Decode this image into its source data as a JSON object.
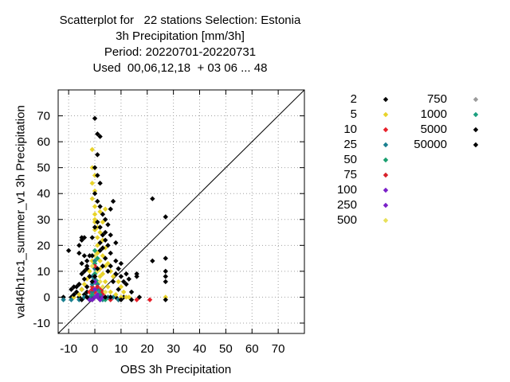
{
  "chart_data": {
    "type": "scatter",
    "title_lines": [
      "Scatterplot for   22 stations Selection: Estonia",
      "3h Precipitation [mm/3h]",
      "Period: 20220701-20220731",
      "Used  00,06,12,18  + 03 06 ... 48"
    ],
    "xlabel": "OBS 3h Precipitation",
    "ylabel": "val46h1rc1_summer_v1 3h Precipitation",
    "xlim": [
      -14,
      80
    ],
    "ylim": [
      -14,
      80
    ],
    "xticks": [
      -10,
      0,
      10,
      20,
      30,
      40,
      50,
      60,
      70
    ],
    "yticks": [
      -10,
      0,
      10,
      20,
      30,
      40,
      50,
      60,
      70
    ],
    "grid": true,
    "diagonal": true,
    "legend_placement": "right",
    "series": [
      {
        "name": "2",
        "color": "#000000",
        "points": [
          [
            -12,
            0
          ],
          [
            -9,
            0
          ],
          [
            -6,
            0
          ],
          [
            -3,
            0
          ],
          [
            -1,
            0
          ],
          [
            0,
            0
          ],
          [
            2,
            0
          ],
          [
            5,
            0
          ],
          [
            8,
            0
          ],
          [
            11,
            0
          ],
          [
            -10,
            18
          ],
          [
            -8,
            4
          ],
          [
            -7,
            4
          ],
          [
            -6,
            5
          ],
          [
            -5,
            3
          ],
          [
            -4,
            10
          ],
          [
            -3,
            12
          ],
          [
            -2,
            8
          ],
          [
            -5,
            13
          ],
          [
            -6,
            17
          ],
          [
            -5,
            23
          ],
          [
            -4,
            23
          ],
          [
            -3,
            11
          ],
          [
            -2,
            16
          ],
          [
            -1,
            0
          ],
          [
            2,
            -1
          ],
          [
            -1,
            -1
          ],
          [
            -2,
            -1
          ],
          [
            -4,
            1
          ],
          [
            -3,
            2
          ]
        ]
      },
      {
        "name": "5",
        "color": "#e8d32a",
        "points": [
          [
            -1,
            57
          ],
          [
            -1,
            50
          ],
          [
            0,
            47
          ],
          [
            -1,
            44
          ],
          [
            0,
            41
          ],
          [
            -1,
            38
          ],
          [
            0,
            35
          ],
          [
            0,
            32
          ],
          [
            0,
            29
          ],
          [
            0,
            26
          ],
          [
            1,
            23
          ],
          [
            1,
            20
          ],
          [
            1,
            17
          ],
          [
            2,
            14
          ],
          [
            2,
            11
          ],
          [
            3,
            9
          ],
          [
            4,
            6
          ],
          [
            5,
            4
          ],
          [
            6,
            2
          ],
          [
            8,
            1
          ],
          [
            10,
            0
          ],
          [
            12,
            0
          ],
          [
            0,
            30
          ],
          [
            1,
            27
          ],
          [
            2,
            25
          ],
          [
            3,
            22
          ],
          [
            4,
            19
          ],
          [
            3,
            16
          ],
          [
            5,
            13
          ],
          [
            6,
            10
          ],
          [
            7,
            8
          ],
          [
            9,
            6
          ],
          [
            10,
            4
          ],
          [
            11,
            2
          ],
          [
            13,
            0
          ],
          [
            -1,
            14
          ],
          [
            -2,
            10
          ],
          [
            -3,
            7
          ],
          [
            -4,
            5
          ],
          [
            -5,
            3
          ],
          [
            -6,
            1
          ],
          [
            -8,
            0
          ],
          [
            2,
            33
          ],
          [
            3,
            29
          ],
          [
            4,
            34
          ],
          [
            27,
            0
          ],
          [
            2,
            8
          ],
          [
            4,
            12
          ]
        ]
      },
      {
        "name": "10",
        "color": "#e8202a",
        "points": [
          [
            16,
            -1
          ],
          [
            21,
            -1
          ],
          [
            9,
            -1
          ],
          [
            6,
            0
          ],
          [
            3,
            1
          ],
          [
            2,
            3
          ],
          [
            1,
            5
          ],
          [
            0,
            2
          ],
          [
            -1,
            4
          ],
          [
            -2,
            2
          ]
        ]
      },
      {
        "name": "25",
        "color": "#1a7f8f",
        "points": [
          [
            0,
            14
          ],
          [
            0,
            11
          ],
          [
            0,
            9
          ],
          [
            0,
            7
          ],
          [
            1,
            5
          ],
          [
            1,
            3
          ],
          [
            2,
            1
          ],
          [
            -1,
            8
          ],
          [
            -1,
            5
          ],
          [
            -1,
            2
          ],
          [
            -2,
            0
          ],
          [
            3,
            -1
          ],
          [
            5,
            0
          ],
          [
            7,
            0
          ],
          [
            9,
            -1
          ],
          [
            -4,
            0
          ],
          [
            -6,
            -1
          ],
          [
            -9,
            -1
          ],
          [
            -12,
            -1
          ]
        ]
      },
      {
        "name": "50",
        "color": "#1a9f6f",
        "points": [
          [
            0,
            18
          ],
          [
            1,
            15
          ],
          [
            -1,
            16
          ],
          [
            0,
            13
          ],
          [
            0,
            9
          ],
          [
            1,
            6
          ],
          [
            2,
            2
          ],
          [
            -1,
            1
          ],
          [
            4,
            -1
          ]
        ]
      },
      {
        "name": "75",
        "color": "#d8202a",
        "points": [
          [
            0,
            12
          ],
          [
            0,
            8
          ],
          [
            1,
            4
          ],
          [
            3,
            2
          ],
          [
            -1,
            3
          ],
          [
            6,
            -1
          ]
        ]
      },
      {
        "name": "100",
        "color": "#7a20c8",
        "points": [
          [
            0,
            6
          ],
          [
            0,
            3
          ],
          [
            1,
            1
          ],
          [
            -1,
            -1
          ],
          [
            2,
            -1
          ],
          [
            3,
            0
          ]
        ]
      },
      {
        "name": "250",
        "color": "#7a20c8",
        "points": [
          [
            -2,
            -1
          ],
          [
            1,
            0
          ],
          [
            0,
            0
          ]
        ]
      },
      {
        "name": "500",
        "color": "#e8e05a",
        "points": [
          [
            0,
            16
          ],
          [
            1,
            10
          ],
          [
            2,
            6
          ],
          [
            -1,
            12
          ],
          [
            3,
            4
          ],
          [
            4,
            2
          ]
        ]
      },
      {
        "name": "750",
        "color": "#9a9a9a",
        "points": []
      },
      {
        "name": "1000",
        "color": "#1a9f7f",
        "points": []
      },
      {
        "name": "5000",
        "color": "#000000",
        "points": []
      },
      {
        "name": "50000",
        "color": "#000000",
        "points": [
          [
            0,
            69
          ],
          [
            1,
            63
          ],
          [
            2,
            62
          ],
          [
            1,
            55
          ],
          [
            0,
            50
          ],
          [
            1,
            47
          ],
          [
            2,
            44
          ],
          [
            0,
            40
          ],
          [
            1,
            37
          ],
          [
            2,
            35
          ],
          [
            3,
            32
          ],
          [
            4,
            30
          ],
          [
            5,
            28
          ],
          [
            6,
            34
          ],
          [
            7,
            37
          ],
          [
            1,
            29
          ],
          [
            2,
            27
          ],
          [
            3,
            24
          ],
          [
            2,
            21
          ],
          [
            4,
            22
          ],
          [
            5,
            20
          ],
          [
            6,
            17
          ],
          [
            4,
            15
          ],
          [
            6,
            12
          ],
          [
            8,
            14
          ],
          [
            9,
            11
          ],
          [
            10,
            8
          ],
          [
            11,
            6
          ],
          [
            12,
            5
          ],
          [
            9,
            3
          ],
          [
            7,
            6
          ],
          [
            8,
            9
          ],
          [
            5,
            10
          ],
          [
            3,
            12
          ],
          [
            1,
            11
          ],
          [
            0,
            8
          ],
          [
            -1,
            6
          ],
          [
            -2,
            8
          ],
          [
            -3,
            4
          ],
          [
            -4,
            7
          ],
          [
            -5,
            9
          ],
          [
            -6,
            5
          ],
          [
            -7,
            2
          ],
          [
            -8,
            1
          ],
          [
            -9,
            3
          ],
          [
            -5,
            -1
          ],
          [
            -3,
            0
          ],
          [
            4,
            0
          ],
          [
            6,
            0
          ],
          [
            10,
            -1
          ],
          [
            14,
            -1
          ],
          [
            16,
            9
          ],
          [
            16,
            8
          ],
          [
            17,
            0
          ],
          [
            22,
            38
          ],
          [
            22,
            14
          ],
          [
            27,
            31
          ],
          [
            27,
            15
          ],
          [
            27,
            10
          ],
          [
            27,
            8
          ],
          [
            27,
            6
          ],
          [
            27,
            -1
          ],
          [
            2,
            18
          ],
          [
            3,
            19
          ],
          [
            4,
            25
          ],
          [
            6,
            24
          ],
          [
            8,
            21
          ],
          [
            10,
            13
          ],
          [
            12,
            9
          ],
          [
            13,
            7
          ],
          [
            14,
            2
          ],
          [
            -1,
            23
          ],
          [
            -1,
            16
          ],
          [
            0,
            27
          ],
          [
            -3,
            14
          ],
          [
            -4,
            16
          ],
          [
            -5,
            22
          ],
          [
            -6,
            20
          ]
        ]
      }
    ]
  }
}
